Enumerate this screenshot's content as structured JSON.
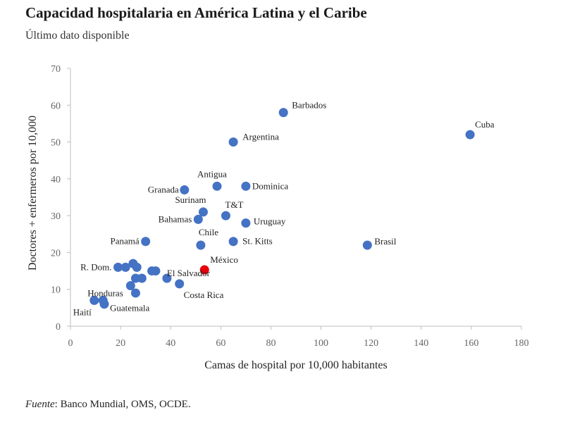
{
  "header": {
    "title": "Capacidad hospitalaria en América Latina y el Caribe",
    "subtitle": "Último dato disponible"
  },
  "footer": {
    "source_label": "Fuente",
    "source_text": ": Banco Mundial, OMS, OCDE."
  },
  "colors": {
    "series": "#4472C4",
    "highlight": "#E8000B",
    "axis": "#bfbfbf"
  },
  "chart_data": {
    "type": "scatter",
    "title": "Capacidad hospitalaria en América Latina y el Caribe",
    "subtitle": "Último dato disponible",
    "xlabel": "Camas de hospital por 10,000 habitantes",
    "ylabel": "Doctores + enfermeros por 10,000",
    "xlim": [
      0,
      180
    ],
    "ylim": [
      0,
      70
    ],
    "xticks": [
      0,
      20,
      40,
      60,
      80,
      100,
      120,
      140,
      160,
      180
    ],
    "yticks": [
      0,
      10,
      20,
      30,
      40,
      50,
      60,
      70
    ],
    "grid": false,
    "legend": "none",
    "points": [
      {
        "label": "Barbados",
        "x": 85,
        "y": 58
      },
      {
        "label": "Cuba",
        "x": 159.5,
        "y": 52
      },
      {
        "label": "Argentina",
        "x": 65,
        "y": 50
      },
      {
        "label": "Antigua",
        "x": 58.5,
        "y": 38
      },
      {
        "label": "Dominica",
        "x": 70,
        "y": 38
      },
      {
        "label": "Granada",
        "x": 45.5,
        "y": 37
      },
      {
        "label": "Surinam",
        "x": 53,
        "y": 31
      },
      {
        "label": "T&T",
        "x": 62,
        "y": 30
      },
      {
        "label": "Bahamas",
        "x": 51,
        "y": 29
      },
      {
        "label": "Uruguay",
        "x": 70,
        "y": 28
      },
      {
        "label": "Panamá",
        "x": 30,
        "y": 23
      },
      {
        "label": "Chile",
        "x": 52,
        "y": 22
      },
      {
        "label": "St. Kitts",
        "x": 65,
        "y": 23
      },
      {
        "label": "Brasil",
        "x": 118.5,
        "y": 22
      },
      {
        "label": "México",
        "x": 53.5,
        "y": 15.3,
        "highlight": true
      },
      {
        "label": "R. Dom.",
        "x": 19,
        "y": 16
      },
      {
        "label": "",
        "x": 22,
        "y": 16
      },
      {
        "label": "",
        "x": 25,
        "y": 17
      },
      {
        "label": "",
        "x": 26.5,
        "y": 16
      },
      {
        "label": "",
        "x": 32.5,
        "y": 15
      },
      {
        "label": "",
        "x": 34,
        "y": 15
      },
      {
        "label": "El Salvador",
        "x": 38.5,
        "y": 13
      },
      {
        "label": "",
        "x": 26,
        "y": 13
      },
      {
        "label": "",
        "x": 28.5,
        "y": 13
      },
      {
        "label": "",
        "x": 24,
        "y": 11
      },
      {
        "label": "Costa Rica",
        "x": 43.5,
        "y": 11.5
      },
      {
        "label": "",
        "x": 26,
        "y": 9
      },
      {
        "label": "Honduras",
        "x": 13,
        "y": 7
      },
      {
        "label": "Haití",
        "x": 9.5,
        "y": 7
      },
      {
        "label": "Guatemala",
        "x": 13.5,
        "y": 6
      }
    ]
  }
}
